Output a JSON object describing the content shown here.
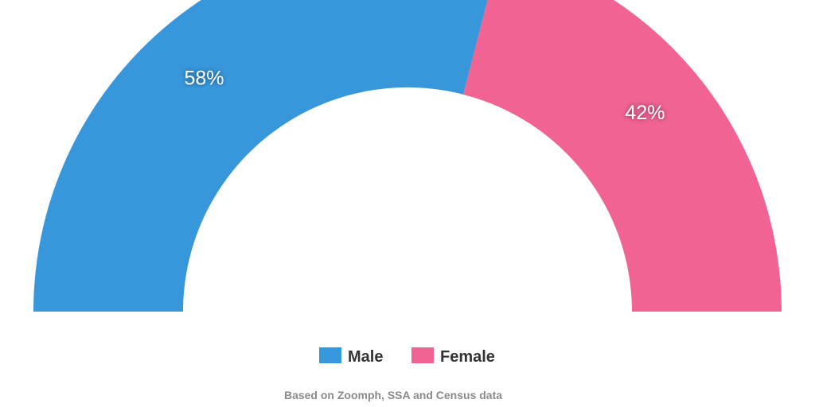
{
  "chart_data": {
    "type": "pie",
    "variant": "semicircle-donut",
    "categories": [
      "Male",
      "Female"
    ],
    "values": [
      58,
      42
    ],
    "labels": [
      "58%",
      "42%"
    ],
    "colors": [
      "#3897db",
      "#f06392"
    ],
    "legend_position": "bottom-center",
    "source": "Based on Zoomph, SSA and Census data"
  }
}
